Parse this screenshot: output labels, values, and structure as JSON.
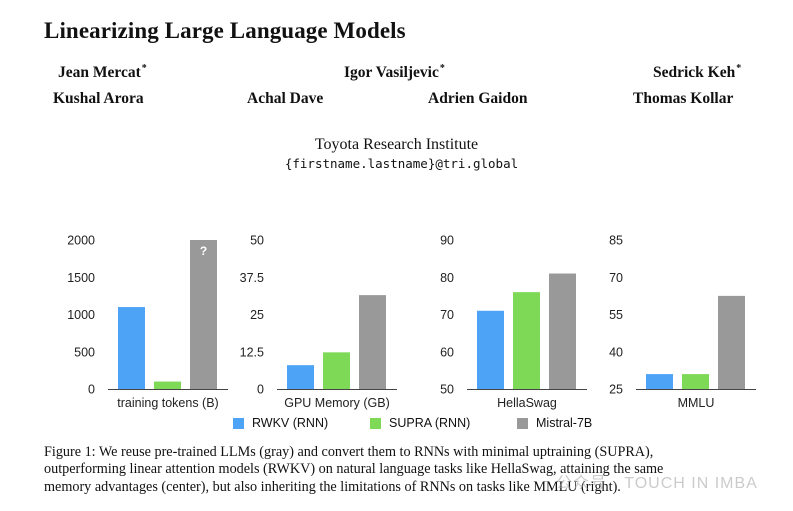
{
  "paper": {
    "title": "Linearizing Large Language Models",
    "authors_row1": [
      {
        "name": "Jean Mercat",
        "mark": "*"
      },
      {
        "name": "Igor Vasiljevic",
        "mark": "*"
      },
      {
        "name": "Sedrick Keh",
        "mark": "*"
      }
    ],
    "authors_row2": [
      {
        "name": "Kushal Arora"
      },
      {
        "name": "Achal Dave"
      },
      {
        "name": "Adrien Gaidon"
      },
      {
        "name": "Thomas Kollar"
      }
    ],
    "affiliation": "Toyota Research Institute",
    "email": "{firstname.lastname}@tri.global"
  },
  "colors": {
    "RWKV": "#4da3f5",
    "SUPRA": "#7ed957",
    "Mistral": "#999999"
  },
  "legend": [
    "RWKV (RNN)",
    "SUPRA (RNN)",
    "Mistral-7B"
  ],
  "chart_data": [
    {
      "type": "bar",
      "title": "",
      "xlabel": "training tokens (B)",
      "ylabel": "",
      "yticks": [
        "0",
        "500",
        "1000",
        "1500",
        "2000"
      ],
      "ylim": [
        0,
        2000
      ],
      "series": [
        {
          "name": "RWKV (RNN)",
          "values": [
            1100
          ]
        },
        {
          "name": "SUPRA (RNN)",
          "values": [
            100
          ]
        },
        {
          "name": "Mistral-7B",
          "values": [
            2000
          ]
        }
      ],
      "annotation": "?"
    },
    {
      "type": "bar",
      "title": "",
      "xlabel": "GPU Memory (GB)",
      "ylabel": "",
      "yticks": [
        "0",
        "12.5",
        "25",
        "37.5",
        "50"
      ],
      "ylim": [
        0,
        50
      ],
      "series": [
        {
          "name": "RWKV (RNN)",
          "values": [
            8
          ]
        },
        {
          "name": "SUPRA (RNN)",
          "values": [
            12.3
          ]
        },
        {
          "name": "Mistral-7B",
          "values": [
            31.5
          ]
        }
      ]
    },
    {
      "type": "bar",
      "title": "",
      "xlabel": "HellaSwag",
      "ylabel": "",
      "yticks": [
        "50",
        "60",
        "70",
        "80",
        "90"
      ],
      "ylim": [
        50,
        90
      ],
      "series": [
        {
          "name": "RWKV (RNN)",
          "values": [
            71
          ]
        },
        {
          "name": "SUPRA (RNN)",
          "values": [
            76
          ]
        },
        {
          "name": "Mistral-7B",
          "values": [
            81
          ]
        }
      ]
    },
    {
      "type": "bar",
      "title": "",
      "xlabel": "MMLU",
      "ylabel": "",
      "yticks": [
        "25",
        "40",
        "55",
        "70",
        "85"
      ],
      "ylim": [
        25,
        85
      ],
      "series": [
        {
          "name": "RWKV (RNN)",
          "values": [
            31
          ]
        },
        {
          "name": "SUPRA (RNN)",
          "values": [
            31
          ]
        },
        {
          "name": "Mistral-7B",
          "values": [
            62.5
          ]
        }
      ]
    }
  ],
  "caption": {
    "line1": "Figure 1: We reuse pre-trained LLMs (gray) and convert them to RNNs with minimal uptraining (SUPRA),",
    "line2": "outperforming linear attention models (RWKV) on natural language tasks like HellaSwag, attaining the same",
    "line3": "memory advantages (center), but also inheriting the limitations of RNNs on tasks like MMLU (right)."
  },
  "watermark": "公众号 · TOUCH IN IMBA"
}
